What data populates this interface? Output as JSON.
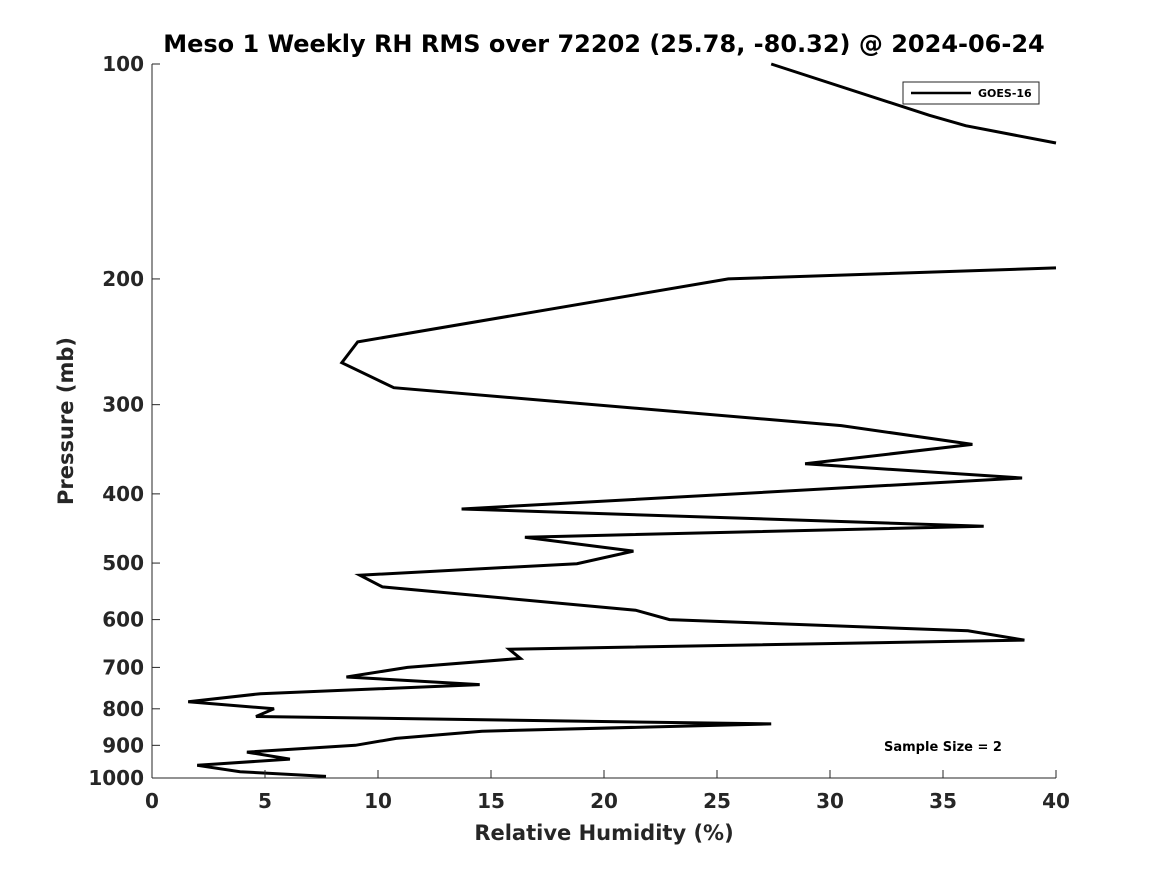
{
  "chart_data": {
    "type": "line",
    "title": "Meso 1 Weekly RH RMS over 72202 (25.78, -80.32) @ 2024-06-24",
    "xlabel": "Relative Humidity (%)",
    "ylabel": "Pressure (mb)",
    "xlim": [
      0,
      40
    ],
    "ylim": [
      100,
      1000
    ],
    "y_scale": "log",
    "y_reversed": true,
    "grid": false,
    "x_ticks": [
      "0",
      "5",
      "10",
      "15",
      "20",
      "25",
      "30",
      "35",
      "40"
    ],
    "y_ticks": [
      "100",
      "200",
      "300",
      "400",
      "500",
      "600",
      "700",
      "800",
      "900",
      "1000"
    ],
    "legend": {
      "placement": "top-right",
      "entries": [
        "GOES-16"
      ]
    },
    "annotation": "Sample Size = 2",
    "series": [
      {
        "name": "GOES-16",
        "color": "#000000",
        "segments": [
          [
            {
              "x": 27.4,
              "p": 100
            },
            {
              "x": 34.4,
              "p": 118
            },
            {
              "x": 36.0,
              "p": 122
            },
            {
              "x": 40.0,
              "p": 129
            }
          ],
          [
            {
              "x": 40.0,
              "p": 193
            },
            {
              "x": 25.5,
              "p": 200
            },
            {
              "x": 9.1,
              "p": 245
            },
            {
              "x": 8.4,
              "p": 262
            },
            {
              "x": 10.7,
              "p": 284
            },
            {
              "x": 30.5,
              "p": 321
            },
            {
              "x": 36.3,
              "p": 341
            },
            {
              "x": 28.9,
              "p": 363
            },
            {
              "x": 38.5,
              "p": 380
            },
            {
              "x": 13.7,
              "p": 420
            },
            {
              "x": 36.8,
              "p": 444
            },
            {
              "x": 16.5,
              "p": 460
            },
            {
              "x": 21.3,
              "p": 481
            },
            {
              "x": 18.8,
              "p": 501
            },
            {
              "x": 9.2,
              "p": 520
            },
            {
              "x": 10.2,
              "p": 540
            },
            {
              "x": 21.4,
              "p": 582
            },
            {
              "x": 22.9,
              "p": 600
            },
            {
              "x": 36.1,
              "p": 622
            },
            {
              "x": 38.6,
              "p": 641
            },
            {
              "x": 15.8,
              "p": 660
            },
            {
              "x": 16.3,
              "p": 680
            },
            {
              "x": 11.3,
              "p": 700
            },
            {
              "x": 8.6,
              "p": 722
            },
            {
              "x": 14.5,
              "p": 740
            },
            {
              "x": 4.8,
              "p": 762
            },
            {
              "x": 1.6,
              "p": 782
            },
            {
              "x": 5.4,
              "p": 800
            },
            {
              "x": 4.6,
              "p": 820
            },
            {
              "x": 27.4,
              "p": 840
            },
            {
              "x": 14.6,
              "p": 860
            },
            {
              "x": 10.8,
              "p": 880
            },
            {
              "x": 9.0,
              "p": 900
            },
            {
              "x": 4.2,
              "p": 920
            },
            {
              "x": 6.1,
              "p": 941
            },
            {
              "x": 2.0,
              "p": 960
            },
            {
              "x": 3.9,
              "p": 980
            },
            {
              "x": 7.7,
              "p": 995
            }
          ]
        ]
      }
    ]
  }
}
